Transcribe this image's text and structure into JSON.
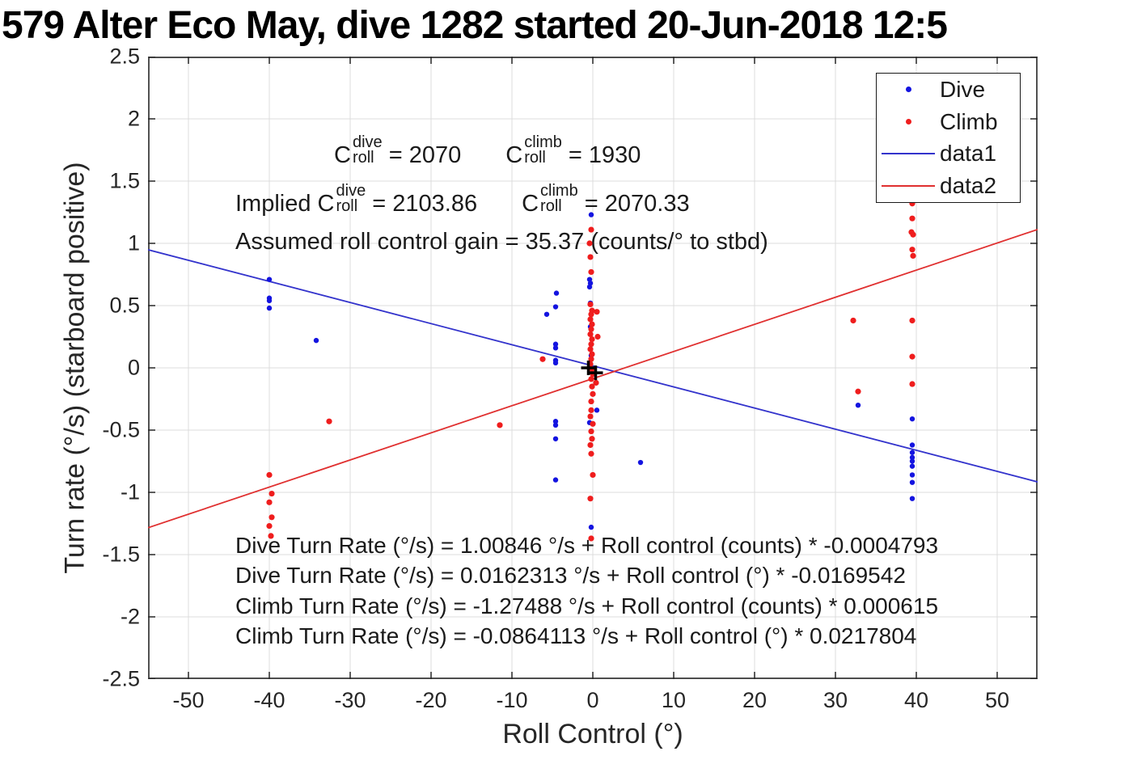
{
  "window_title": "579 Alter Eco May, dive 1282 started 20-Jun-2018 12:5",
  "colors": {
    "dive": "#1414e0",
    "climb": "#ef1d1d",
    "data1_line": "#3333cc",
    "data2_line": "#e03030",
    "grid": "#dcdcdc",
    "axis": "#262626",
    "text": "#1a1a1a",
    "center_marker": "#000000"
  },
  "chart_data": {
    "type": "scatter",
    "title": "579 Alter Eco May, dive 1282 started 20-Jun-2018 12:5",
    "xlabel": "Roll Control (°)",
    "ylabel": "Turn rate (°/s) (starboard positive)",
    "xlim": [
      -55,
      55
    ],
    "ylim": [
      -2.5,
      2.5
    ],
    "grid": true,
    "xticks": [
      -50,
      -40,
      -30,
      -20,
      -10,
      0,
      10,
      20,
      30,
      40,
      50
    ],
    "xtick_labels": [
      "-50",
      "-40",
      "-30",
      "-20",
      "-10",
      "0",
      "10",
      "20",
      "30",
      "40",
      "50"
    ],
    "yticks": [
      -2.5,
      -2,
      -1.5,
      -1,
      -0.5,
      0,
      0.5,
      1,
      1.5,
      2,
      2.5
    ],
    "ytick_labels": [
      "-2.5",
      "-2",
      "-1.5",
      "-1",
      "-0.5",
      "0",
      "0.5",
      "1",
      "1.5",
      "2",
      "2.5"
    ],
    "legend": {
      "position": "top-right",
      "entries": [
        {
          "label": "Dive",
          "marker": "dot",
          "color_key": "dive"
        },
        {
          "label": "Climb",
          "marker": "dot",
          "color_key": "climb"
        },
        {
          "label": "data1",
          "marker": "line",
          "color_key": "data1_line"
        },
        {
          "label": "data2",
          "marker": "line",
          "color_key": "data2_line"
        }
      ]
    },
    "series": [
      {
        "name": "Dive",
        "type": "scatter",
        "color_key": "dive",
        "marker_r": 3.2,
        "points": [
          [
            -40,
            0.71
          ],
          [
            -40,
            0.56
          ],
          [
            -40,
            0.54
          ],
          [
            -40,
            0.48
          ],
          [
            -34.2,
            0.22
          ],
          [
            -5.7,
            0.43
          ],
          [
            -4.5,
            0.6
          ],
          [
            -4.6,
            0.49
          ],
          [
            -4.6,
            0.19
          ],
          [
            -4.6,
            0.16
          ],
          [
            -4.6,
            0.06
          ],
          [
            -4.6,
            0.04
          ],
          [
            -4.6,
            -0.43
          ],
          [
            -4.6,
            -0.46
          ],
          [
            -4.6,
            -0.57
          ],
          [
            -4.6,
            -0.9
          ],
          [
            -0.2,
            1.23
          ],
          [
            -0.4,
            0.71
          ],
          [
            -0.3,
            0.68
          ],
          [
            -0.4,
            0.65
          ],
          [
            -0.3,
            0.52
          ],
          [
            -0.3,
            0.33
          ],
          [
            -0.2,
            0.1
          ],
          [
            0.1,
            -0.05
          ],
          [
            0.5,
            -0.34
          ],
          [
            -0.4,
            -0.44
          ],
          [
            -0.2,
            -1.28
          ],
          [
            5.9,
            -0.76
          ],
          [
            32.8,
            -0.3
          ],
          [
            39.5,
            -0.41
          ],
          [
            39.5,
            -0.62
          ],
          [
            39.5,
            -0.68
          ],
          [
            39.5,
            -0.72
          ],
          [
            39.5,
            -0.75
          ],
          [
            39.5,
            -0.79
          ],
          [
            39.5,
            -0.86
          ],
          [
            39.5,
            -0.92
          ],
          [
            39.5,
            -1.05
          ]
        ]
      },
      {
        "name": "Climb",
        "type": "scatter",
        "color_key": "climb",
        "marker_r": 3.6,
        "points": [
          [
            -40,
            -0.86
          ],
          [
            -39.7,
            -1.01
          ],
          [
            -40,
            -1.08
          ],
          [
            -39.7,
            -1.2
          ],
          [
            -40,
            -1.27
          ],
          [
            -39.8,
            -1.35
          ],
          [
            -32.6,
            -0.43
          ],
          [
            -11.5,
            -0.46
          ],
          [
            -6.2,
            0.07
          ],
          [
            -0.2,
            1.11
          ],
          [
            -0.4,
            1.0
          ],
          [
            -0.3,
            0.89
          ],
          [
            -0.2,
            0.77
          ],
          [
            -0.3,
            0.51
          ],
          [
            0.5,
            0.45
          ],
          [
            -0.1,
            0.46
          ],
          [
            -0.2,
            0.43
          ],
          [
            -0.3,
            0.39
          ],
          [
            -0.1,
            0.35
          ],
          [
            -0.2,
            0.31
          ],
          [
            -0.3,
            0.27
          ],
          [
            0.6,
            0.25
          ],
          [
            -0.1,
            0.23
          ],
          [
            -0.2,
            0.19
          ],
          [
            -0.3,
            0.15
          ],
          [
            -0.1,
            0.11
          ],
          [
            -0.2,
            0.07
          ],
          [
            -0.3,
            0.03
          ],
          [
            -0.1,
            -0.01
          ],
          [
            0.0,
            -0.05
          ],
          [
            -0.2,
            -0.09
          ],
          [
            0.4,
            -0.12
          ],
          [
            -0.1,
            -0.15
          ],
          [
            0.0,
            -0.21
          ],
          [
            -0.2,
            -0.27
          ],
          [
            -0.2,
            -0.34
          ],
          [
            -0.3,
            -0.39
          ],
          [
            0.0,
            -0.45
          ],
          [
            -0.2,
            -0.51
          ],
          [
            -0.1,
            -0.57
          ],
          [
            -0.3,
            -0.62
          ],
          [
            -0.2,
            -0.69
          ],
          [
            0.0,
            -0.86
          ],
          [
            -0.3,
            -1.05
          ],
          [
            -0.2,
            -1.37
          ],
          [
            32.2,
            0.38
          ],
          [
            32.8,
            -0.19
          ],
          [
            39.5,
            1.32
          ],
          [
            39.5,
            1.2
          ],
          [
            39.4,
            1.09
          ],
          [
            39.6,
            1.07
          ],
          [
            39.5,
            0.95
          ],
          [
            39.6,
            0.9
          ],
          [
            39.5,
            0.38
          ],
          [
            39.5,
            0.09
          ],
          [
            39.5,
            -0.13
          ]
        ]
      },
      {
        "name": "data1",
        "type": "line",
        "color_key": "data1_line",
        "width": 1.8,
        "intercept": 0.0162313,
        "slope": -0.0169542
      },
      {
        "name": "data2",
        "type": "line",
        "color_key": "data2_line",
        "width": 1.8,
        "intercept": -0.0864113,
        "slope": 0.0217804
      }
    ],
    "center_markers": [
      [
        -0.55,
        0.0
      ],
      [
        0.35,
        -0.04
      ]
    ],
    "annotations": {
      "c_symbol": "C",
      "sup_dive": "dive",
      "sup_climb": "climb",
      "sub_roll": "roll",
      "line1": {
        "dive_val": " = 2070",
        "climb_val": " = 1930"
      },
      "line2": {
        "prefix": "Implied ",
        "dive_val": " = 2103.86",
        "climb_val": " = 2070.33"
      },
      "line3": "Assumed roll control gain = 35.37 (counts/° to stbd)"
    },
    "fit_equations": [
      "Dive Turn Rate (°/s) = 1.00846 °/s + Roll control (counts) * -0.0004793",
      "Dive Turn Rate (°/s) = 0.0162313 °/s + Roll control (°) * -0.0169542",
      "Climb Turn Rate (°/s) = -1.27488 °/s + Roll control (counts) * 0.000615",
      "Climb Turn Rate (°/s) = -0.0864113 °/s + Roll control (°) * 0.0217804"
    ]
  }
}
